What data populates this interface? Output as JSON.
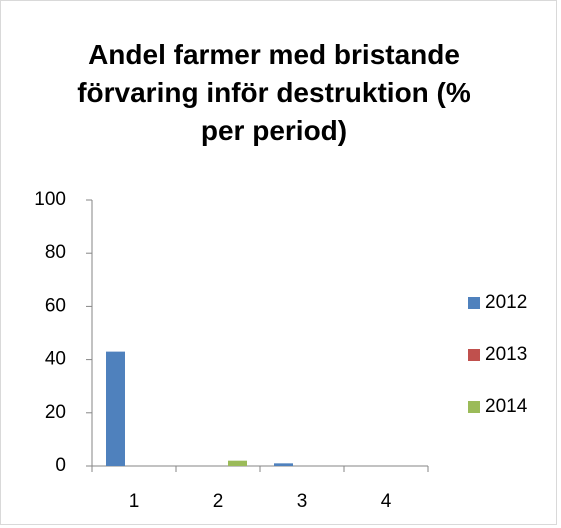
{
  "chart_data": {
    "type": "bar",
    "title": "Andel farmer med bristande förvaring inför destruktion (% per period)",
    "categories": [
      "1",
      "2",
      "3",
      "4"
    ],
    "series": [
      {
        "name": "2012",
        "color": "#4f81bd",
        "values": [
          43,
          0,
          1,
          0
        ]
      },
      {
        "name": "2013",
        "color": "#c0504d",
        "values": [
          0,
          0,
          0,
          0
        ]
      },
      {
        "name": "2014",
        "color": "#9bbb59",
        "values": [
          0,
          2,
          0,
          0
        ]
      }
    ],
    "ylim": [
      0,
      100
    ],
    "yticks": [
      0,
      20,
      40,
      60,
      80,
      100
    ],
    "grid": false,
    "legend": "right"
  }
}
